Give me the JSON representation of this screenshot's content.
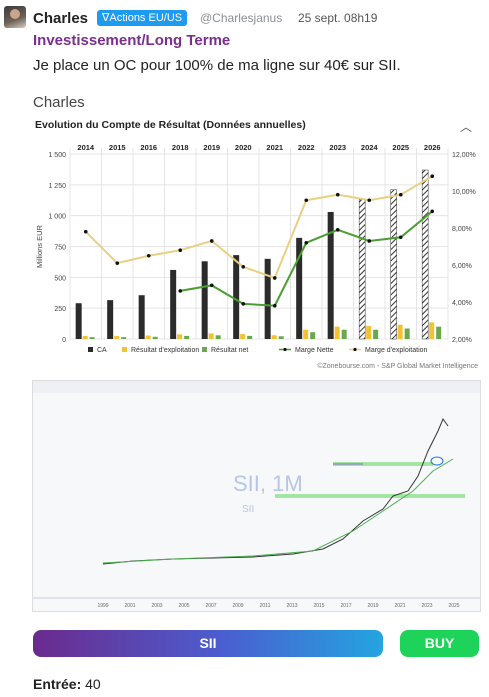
{
  "post": {
    "author": "Charles",
    "tag": "∇Actions EU/US",
    "handle": "@Charlesjanus",
    "date": "25 sept. 08h19",
    "subject": "Investissement/Long Terme",
    "message": "Je place un OC pour 100% de ma ligne sur 40€ sur SII.",
    "author_repeat": "Charles"
  },
  "chart_data": {
    "type": "bar",
    "title": "Evolution du Compte de Résultat (Données annuelles)",
    "categories": [
      "2014",
      "2015",
      "2016",
      "2018",
      "2019",
      "2020",
      "2021",
      "2022",
      "2023",
      "2024",
      "2025",
      "2026"
    ],
    "ylabel": "Millions EUR",
    "ylim": [
      0,
      1500
    ],
    "yticks": [
      "0",
      "250",
      "500",
      "750",
      "1 000",
      "1 250",
      "1 500"
    ],
    "y2lim": [
      2,
      12
    ],
    "y2ticks": [
      "2,00%",
      "4,00%",
      "6,00%",
      "8,00%",
      "10,00%",
      "12,00%"
    ],
    "series": [
      {
        "name": "CA",
        "values": [
          290,
          315,
          355,
          560,
          630,
          680,
          650,
          820,
          1030,
          1130,
          1210,
          1370
        ]
      },
      {
        "name": "Résultat d'exploitation",
        "values": [
          25,
          25,
          28,
          38,
          45,
          40,
          30,
          75,
          100,
          105,
          115,
          135
        ]
      },
      {
        "name": "Résultat net",
        "values": [
          15,
          15,
          18,
          25,
          30,
          25,
          22,
          55,
          75,
          75,
          85,
          100
        ]
      },
      {
        "name": "Marge Nette",
        "values": [
          null,
          null,
          null,
          4.6,
          4.9,
          3.9,
          3.8,
          7.2,
          7.9,
          7.3,
          7.5,
          8.9
        ]
      },
      {
        "name": "Marge d'exploitation",
        "values": [
          7.8,
          6.1,
          6.5,
          6.8,
          7.3,
          5.9,
          5.3,
          9.5,
          9.8,
          9.5,
          9.8,
          10.8
        ]
      }
    ],
    "forecast_from": "2024",
    "credit": "©Zonebourse.com - S&P Global Market Intelligence"
  },
  "screenshot": {
    "label": "SII, 1M",
    "sublabel": "SII",
    "x_ticks": [
      "1999",
      "2001",
      "2003",
      "2005",
      "2007",
      "2009",
      "2011",
      "2013",
      "2015",
      "2017",
      "2019",
      "2021",
      "2023",
      "2025"
    ]
  },
  "buttons": {
    "ticker": "SII",
    "action": "BUY"
  },
  "entry": {
    "label": "Entrée:",
    "value": "40"
  }
}
